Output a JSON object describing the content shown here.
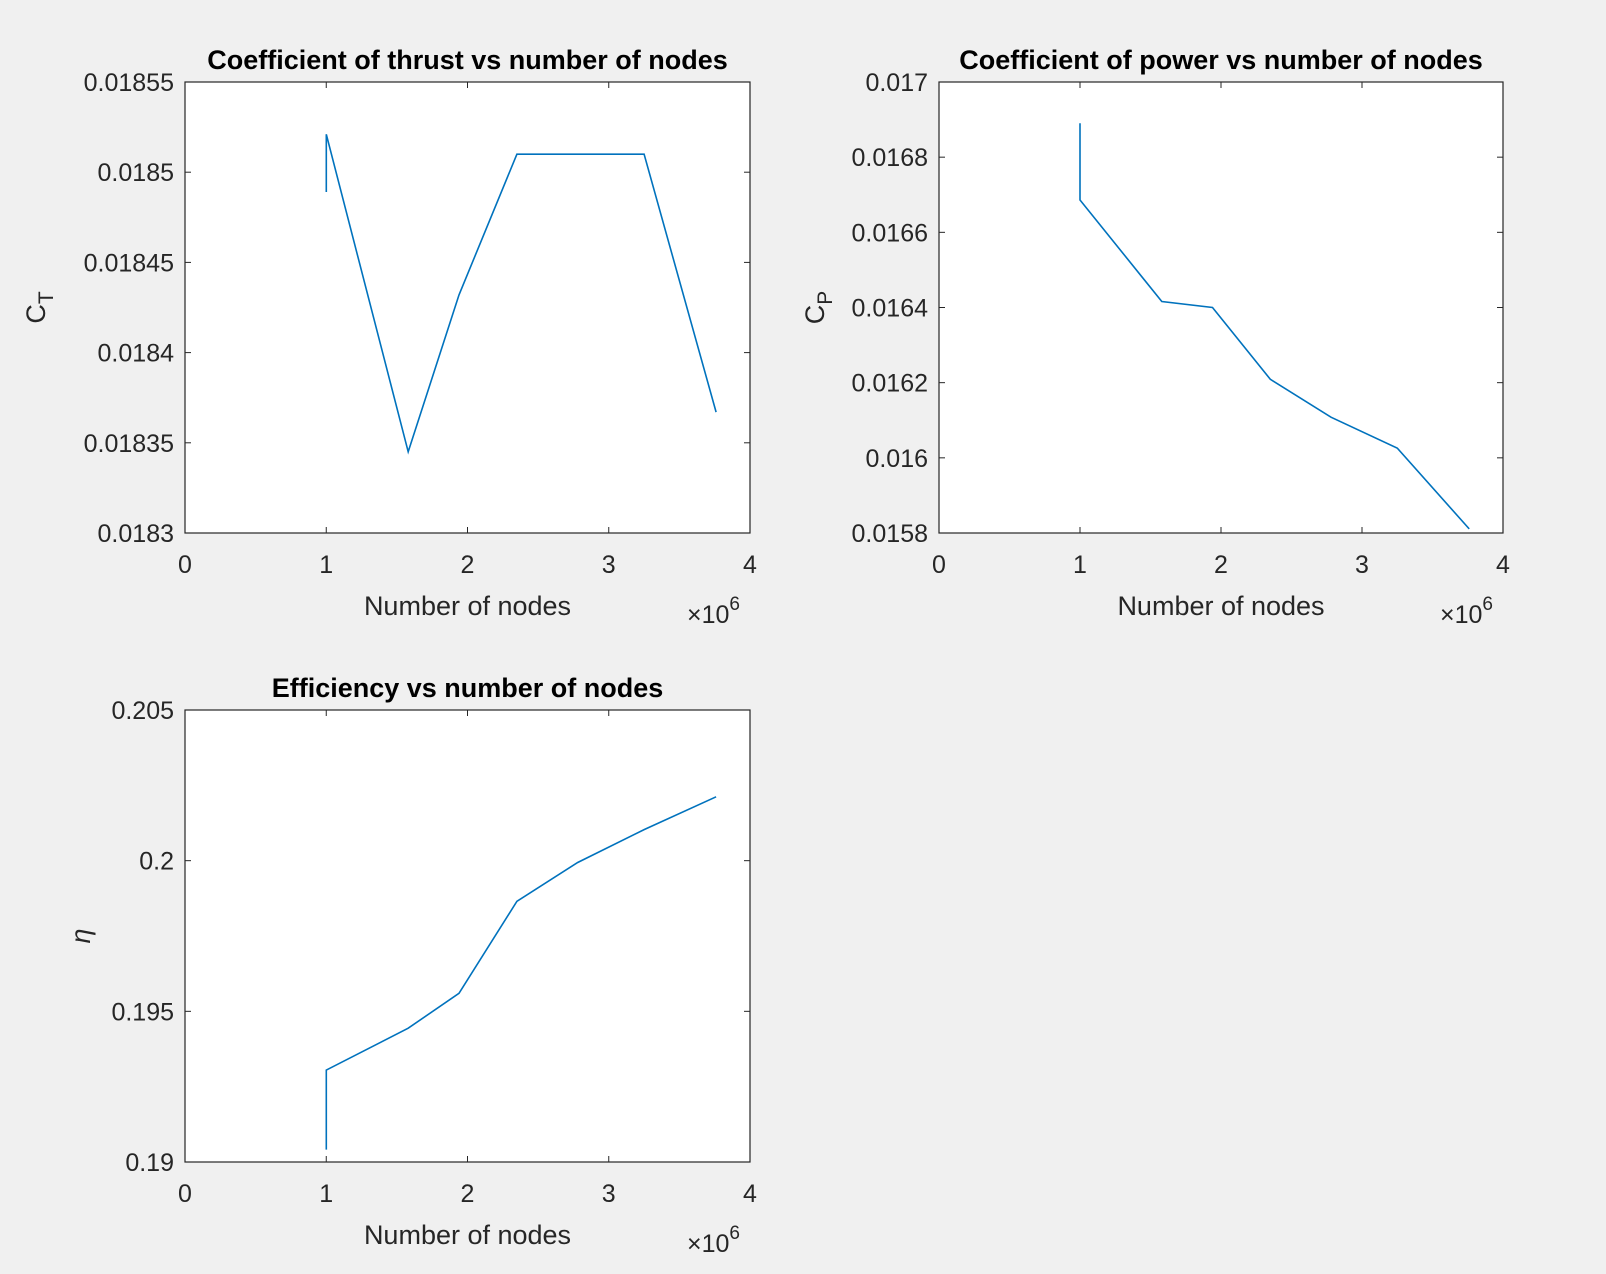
{
  "chart_data": [
    {
      "type": "line",
      "title": "Coefficient of thrust vs number of nodes",
      "xlabel": "Number of nodes",
      "ylabel_main": "C",
      "ylabel_sub": "T",
      "x_exponent_base": "×10",
      "x_exponent_power": "6",
      "xlim": [
        0,
        4
      ],
      "ylim": [
        0.0183,
        0.01855
      ],
      "xticks": [
        "0",
        "1",
        "2",
        "3",
        "4"
      ],
      "yticks": [
        "0.0183",
        "0.01835",
        "0.0184",
        "0.01845",
        "0.0185",
        "0.01855"
      ],
      "ytick_values": [
        0.0183,
        0.01835,
        0.0184,
        0.01845,
        0.0185,
        0.01855
      ],
      "series": [
        {
          "name": "CT",
          "color": "#0072BD",
          "x": [
            1.0,
            1.0,
            1.58,
            1.94,
            2.35,
            2.78,
            3.25,
            3.76
          ],
          "y": [
            0.018489,
            0.018521,
            0.018345,
            0.018432,
            0.01851,
            0.01851,
            0.01851,
            0.018367
          ]
        }
      ]
    },
    {
      "type": "line",
      "title": "Coefficient of power vs number of nodes",
      "xlabel": "Number of nodes",
      "ylabel_main": "C",
      "ylabel_sub": "P",
      "x_exponent_base": "×10",
      "x_exponent_power": "6",
      "xlim": [
        0,
        4
      ],
      "ylim": [
        0.0158,
        0.017
      ],
      "xticks": [
        "0",
        "1",
        "2",
        "3",
        "4"
      ],
      "yticks": [
        "0.0158",
        "0.016",
        "0.0162",
        "0.0164",
        "0.0166",
        "0.0168",
        "0.017"
      ],
      "ytick_values": [
        0.0158,
        0.016,
        0.0162,
        0.0164,
        0.0166,
        0.0168,
        0.017
      ],
      "series": [
        {
          "name": "CP",
          "color": "#0072BD",
          "x": [
            1.0,
            1.0,
            1.58,
            1.94,
            2.35,
            2.78,
            3.25,
            3.76
          ],
          "y": [
            0.01689,
            0.016686,
            0.016416,
            0.0164,
            0.016209,
            0.016108,
            0.016026,
            0.015811
          ]
        }
      ]
    },
    {
      "type": "line",
      "title": "Efficiency vs number of nodes",
      "xlabel": "Number of nodes",
      "ylabel_main": "η",
      "ylabel_sub": "",
      "x_exponent_base": "×10",
      "x_exponent_power": "6",
      "xlim": [
        0,
        4
      ],
      "ylim": [
        0.19,
        0.205
      ],
      "xticks": [
        "0",
        "1",
        "2",
        "3",
        "4"
      ],
      "yticks": [
        "0.19",
        "0.195",
        "0.2",
        "0.205"
      ],
      "ytick_values": [
        0.19,
        0.195,
        0.2,
        0.205
      ],
      "series": [
        {
          "name": "eta",
          "color": "#0072BD",
          "x": [
            1.0,
            1.0,
            1.58,
            1.94,
            2.35,
            2.78,
            3.25,
            3.76
          ],
          "y": [
            0.19041,
            0.19305,
            0.19444,
            0.1956,
            0.19865,
            0.19994,
            0.20103,
            0.20212
          ]
        }
      ]
    }
  ]
}
